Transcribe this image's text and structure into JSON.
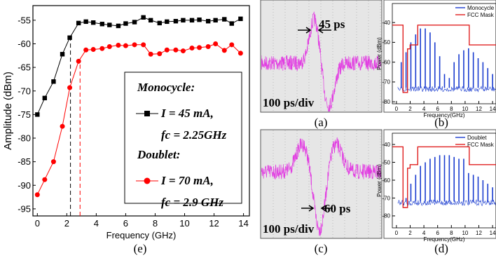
{
  "chart_data": [
    {
      "type": "line",
      "caption": "(e)",
      "xlabel": "Frequency (GHz)",
      "ylabel": "Amplitude (dBm)",
      "xlim": [
        -0.3,
        14.4
      ],
      "ylim": [
        -96.5,
        -51.9
      ],
      "xticks": [
        0,
        2,
        4,
        6,
        8,
        10,
        12,
        14
      ],
      "yticks": [
        -95,
        -90,
        -85,
        -80,
        -75,
        -70,
        -65,
        -60,
        -55
      ],
      "series": [
        {
          "name": "Monocycle:",
          "legend_text": [
            "I = 45 mA,",
            "fc = 2.25GHz"
          ],
          "color": "#000000",
          "marker": "square",
          "x": [
            0,
            0.5,
            1.1,
            1.7,
            2.2,
            2.8,
            3.3,
            3.8,
            4.4,
            4.9,
            5.5,
            6.0,
            6.6,
            7.2,
            7.7,
            8.3,
            8.8,
            9.4,
            9.9,
            10.5,
            11.0,
            11.6,
            12.1,
            12.7,
            13.2,
            13.8
          ],
          "values": [
            -75,
            -71.5,
            -68,
            -62.2,
            -58.7,
            -55.6,
            -55.3,
            -55.5,
            -55.8,
            -56,
            -56.2,
            -55.7,
            -55.4,
            -54.4,
            -55,
            -55.6,
            -55.3,
            -55.2,
            -55,
            -55,
            -54.9,
            -55.2,
            -55,
            -54.8,
            -55.7,
            -54.7
          ]
        },
        {
          "name": "Doublet:",
          "legend_text": [
            "I = 70 mA,",
            "fc = 2.9 GHz"
          ],
          "color": "#ff0000",
          "marker": "circle",
          "x": [
            0,
            0.5,
            1.1,
            1.7,
            2.2,
            2.8,
            3.3,
            3.8,
            4.4,
            4.9,
            5.5,
            6.0,
            6.6,
            7.2,
            7.7,
            8.3,
            8.8,
            9.4,
            9.9,
            10.5,
            11.0,
            11.6,
            12.1,
            12.7,
            13.2,
            13.8
          ],
          "values": [
            -92,
            -88.8,
            -85,
            -77.5,
            -69.3,
            -63.7,
            -61.3,
            -61.2,
            -61,
            -60.6,
            -60.3,
            -60.4,
            -60.2,
            -60.2,
            -62.2,
            -62.1,
            -61.3,
            -61.3,
            -61.5,
            -60.9,
            -60.8,
            -60.6,
            -60,
            -61.4,
            -60.2,
            -62
          ]
        }
      ],
      "vlines": [
        {
          "x": 2.25,
          "y": -58.7,
          "color": "#000000"
        },
        {
          "x": 2.9,
          "y": -63.7,
          "color": "#ff0000"
        }
      ]
    },
    {
      "type": "spectrum",
      "caption": "(b)",
      "xlabel": "Frequency(GHz)",
      "ylabel": "Power (dBm)",
      "xlim": [
        -0.6,
        14.5
      ],
      "ylim": [
        -81,
        -30.4
      ],
      "xticks": [
        0,
        2,
        4,
        6,
        8,
        10,
        12,
        14
      ],
      "yticks": [
        -40,
        -50,
        -60,
        -70,
        -80
      ],
      "series": [
        {
          "name": "Monocycle",
          "type": "stem",
          "color": "#1a3ccf",
          "baseline": -73,
          "x": [
            0.7,
            1.4,
            2.1,
            2.8,
            3.5,
            4.2,
            4.9,
            5.6,
            6.3,
            7.0,
            7.7,
            8.4,
            9.1,
            9.8,
            10.5,
            11.2,
            11.9,
            12.6,
            13.3,
            14.0
          ],
          "values": [
            -60,
            -55,
            -50,
            -46,
            -43,
            -43,
            -45,
            -50,
            -57,
            -66,
            -68,
            -60,
            -56,
            -54,
            -53,
            -55,
            -58,
            -60,
            -63,
            -66
          ]
        },
        {
          "name": "FCC Mask",
          "type": "step",
          "color": "#e02020",
          "x": [
            -0.6,
            0.96,
            1.61,
            1.99,
            3.1,
            10.6
          ],
          "values": [
            -41.3,
            -75.3,
            -53.3,
            -51.3,
            -41.3,
            -51.3
          ]
        }
      ]
    },
    {
      "type": "spectrum",
      "caption": "(d)",
      "xlabel": "Frequency(GHz)",
      "ylabel": "Power (dBm)",
      "xlim": [
        -0.6,
        14.5
      ],
      "ylim": [
        -86.7,
        -33.7
      ],
      "xticks": [
        0,
        2,
        4,
        6,
        8,
        10,
        12,
        14
      ],
      "yticks": [
        -40,
        -50,
        -60,
        -70,
        -80
      ],
      "series": [
        {
          "name": "Doublet",
          "type": "stem",
          "color": "#1a3ccf",
          "baseline": -72,
          "x": [
            0.7,
            1.4,
            2.1,
            2.8,
            3.5,
            4.2,
            4.9,
            5.6,
            6.3,
            7.0,
            7.7,
            8.4,
            9.1,
            9.8,
            10.5,
            11.2,
            11.9,
            12.6,
            13.3,
            14.0
          ],
          "values": [
            -72,
            -70,
            -62,
            -57,
            -52,
            -50,
            -48,
            -47,
            -46,
            -46,
            -46,
            -47,
            -48,
            -48,
            -56,
            -57,
            -58,
            -60,
            -62,
            -64
          ]
        },
        {
          "name": "FCC Mask",
          "type": "step",
          "color": "#e02020",
          "x": [
            -0.6,
            0.96,
            1.61,
            1.99,
            3.1,
            10.6
          ],
          "values": [
            -41.3,
            -75.3,
            -53.3,
            -51.3,
            -41.3,
            -51.3
          ]
        }
      ]
    }
  ],
  "panels": {
    "a": {
      "caption": "(a)",
      "width_label": "45 ps",
      "scale_label": "100 ps/div"
    },
    "c": {
      "caption": "(c)",
      "width_label": "60 ps",
      "scale_label": "100 ps/div"
    }
  }
}
